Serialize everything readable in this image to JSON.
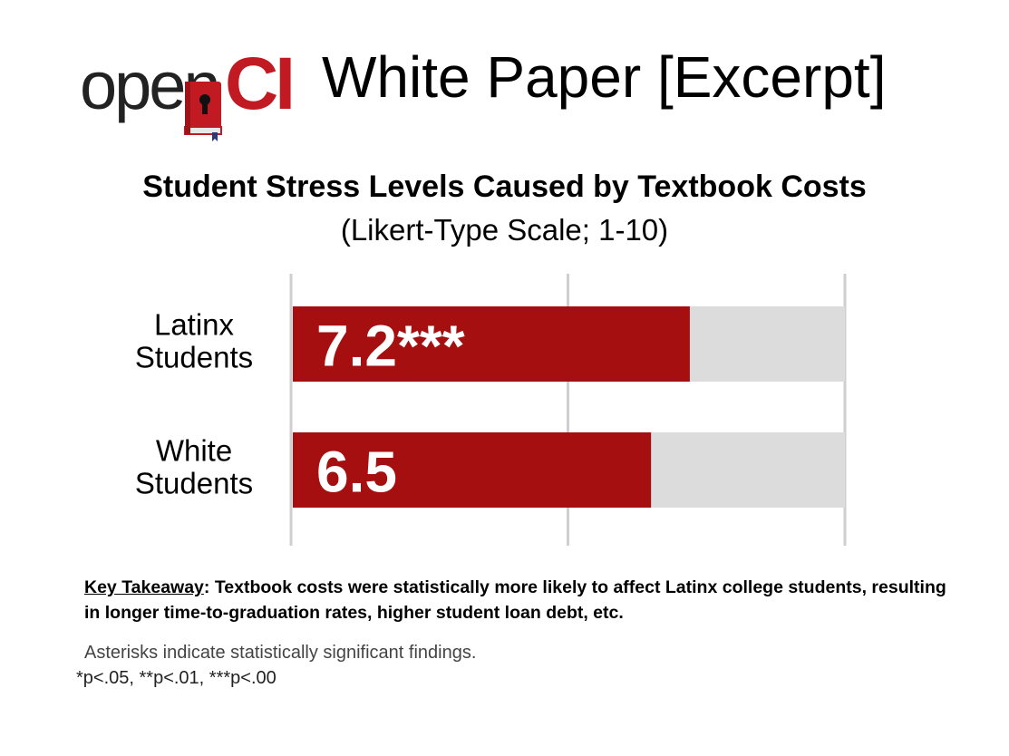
{
  "header": {
    "logo_text_open": "open",
    "logo_text_ci": "CI",
    "title": "White Paper [Excerpt]"
  },
  "colors": {
    "bar": "#a50f10",
    "track": "#dcdcdc",
    "grid": "#cfcfcf",
    "logo_red": "#c21a22"
  },
  "chart_data": {
    "type": "bar",
    "orientation": "horizontal",
    "title": "Student Stress Levels Caused by Textbook Costs",
    "subtitle": "(Likert-Type Scale; 1-10)",
    "categories": [
      [
        "Latinx",
        "Students"
      ],
      [
        "White",
        "Students"
      ]
    ],
    "values": [
      7.2,
      6.5
    ],
    "value_labels": [
      "7.2***",
      "6.5"
    ],
    "xlim": [
      0,
      10
    ],
    "grid": true,
    "legend": "none"
  },
  "takeaway": {
    "label": "Key Takeaway",
    "text": ": Textbook costs were statistically more likely to affect Latinx college students, resulting in longer time-to-graduation rates, higher student loan debt, etc."
  },
  "footnote": {
    "line1": "Asterisks indicate statistically significant findings.",
    "line2": "*p<.05, **p<.01, ***p<.00"
  }
}
